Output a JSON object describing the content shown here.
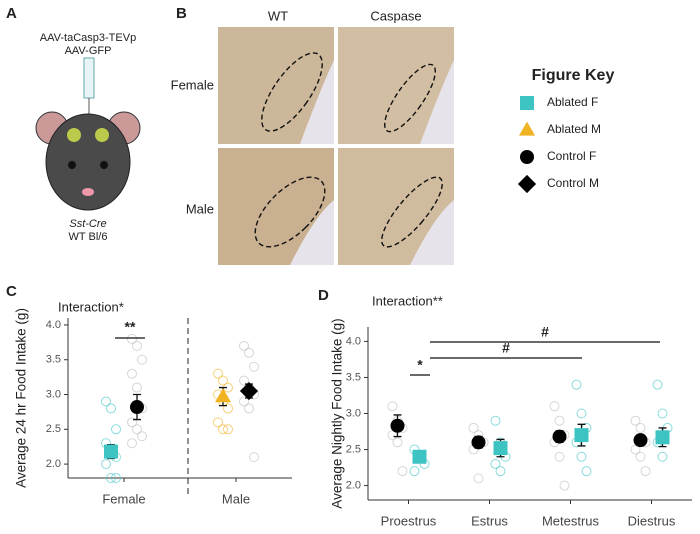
{
  "panel_a": {
    "label": "A",
    "virus": [
      "AAV-taCasp3-TEVp",
      "AAV-GFP"
    ],
    "genotype": [
      "Sst-Cre",
      "WT Bl/6"
    ]
  },
  "panel_b": {
    "label": "B",
    "columns": [
      "WT",
      "Caspase"
    ],
    "rows": [
      "Female",
      "Male"
    ]
  },
  "figure_key": {
    "title": "Figure Key"
  },
  "chart_data": [
    {
      "type": "dot",
      "panel": "C",
      "annotation": "Interaction*",
      "significance": [
        "**"
      ],
      "ylabel": "Average 24 hr Food Intake (g)",
      "categories": [
        "Female",
        "Male"
      ],
      "ylim": [
        1.8,
        4.1
      ],
      "yticks": [
        {
          "value": 2,
          "label": "2.0"
        },
        2.5,
        {
          "value": 3,
          "label": "3.0"
        },
        3.5,
        {
          "value": 4,
          "label": "4.0"
        }
      ],
      "series": [
        {
          "name": "Ablated F",
          "color": "#3ec3c3",
          "marker": "square",
          "values": [
            2.18,
            null
          ],
          "errors": [
            0.1,
            null
          ],
          "points": [
            [
              2.9,
              2.8,
              2.5,
              2.3,
              2.2,
              2.1,
              2.0,
              1.8,
              1.8
            ],
            []
          ]
        },
        {
          "name": "Ablated M",
          "color": "#f0b323",
          "marker": "triangle",
          "values": [
            null,
            2.97
          ],
          "errors": [
            null,
            0.13
          ],
          "points": [
            [],
            [
              3.3,
              3.2,
              3.1,
              3.0,
              2.9,
              2.8,
              2.6,
              2.5,
              2.5
            ]
          ]
        },
        {
          "name": "Control F",
          "color": "#000000",
          "marker": "circle",
          "values": [
            2.82,
            null
          ],
          "errors": [
            0.18,
            null
          ],
          "points": [
            [
              3.8,
              3.7,
              3.5,
              3.3,
              3.1,
              2.8,
              2.6,
              2.5,
              2.4,
              2.3
            ],
            []
          ]
        },
        {
          "name": "Control M",
          "color": "#000000",
          "marker": "diamond",
          "values": [
            null,
            3.05
          ],
          "errors": [
            null,
            0.1
          ],
          "points": [
            [],
            [
              3.7,
              3.6,
              3.4,
              3.2,
              3.1,
              3.0,
              2.9,
              2.8,
              2.1
            ]
          ]
        }
      ]
    },
    {
      "type": "dot",
      "panel": "D",
      "annotation": "Interaction**",
      "significance": [
        "*",
        "#",
        "#"
      ],
      "ylabel": "Average Nightly Food Intake (g)",
      "categories": [
        "Proestrus",
        "Estrus",
        "Metestrus",
        "Diestrus"
      ],
      "ylim": [
        1.8,
        4.2
      ],
      "yticks": [
        {
          "value": 2,
          "label": "2.0"
        },
        2.5,
        {
          "value": 3,
          "label": "3.0"
        },
        3.5,
        {
          "value": 4,
          "label": "4.0"
        }
      ],
      "series": [
        {
          "name": "Control F",
          "color": "#000000",
          "marker": "circle",
          "values": [
            2.83,
            2.6,
            2.68,
            2.63
          ],
          "errors": [
            0.15,
            0.08,
            0.08,
            0.07
          ],
          "points": [
            [
              3.1,
              2.9,
              2.8,
              2.7,
              2.6,
              2.2
            ],
            [
              2.8,
              2.7,
              2.6,
              2.5,
              2.1
            ],
            [
              3.1,
              2.9,
              2.7,
              2.6,
              2.4,
              2.0
            ],
            [
              2.9,
              2.8,
              2.6,
              2.5,
              2.4,
              2.2
            ]
          ]
        },
        {
          "name": "Ablated F",
          "color": "#3ec3c3",
          "marker": "square",
          "values": [
            2.4,
            2.52,
            2.7,
            2.67
          ],
          "errors": [
            0.07,
            0.12,
            0.15,
            0.13
          ],
          "points": [
            [
              2.5,
              2.4,
              2.3,
              2.2
            ],
            [
              2.9,
              2.6,
              2.4,
              2.3,
              2.2
            ],
            [
              3.4,
              3.0,
              2.8,
              2.6,
              2.4,
              2.2
            ],
            [
              3.4,
              3.0,
              2.8,
              2.6,
              2.4
            ]
          ]
        }
      ]
    }
  ]
}
